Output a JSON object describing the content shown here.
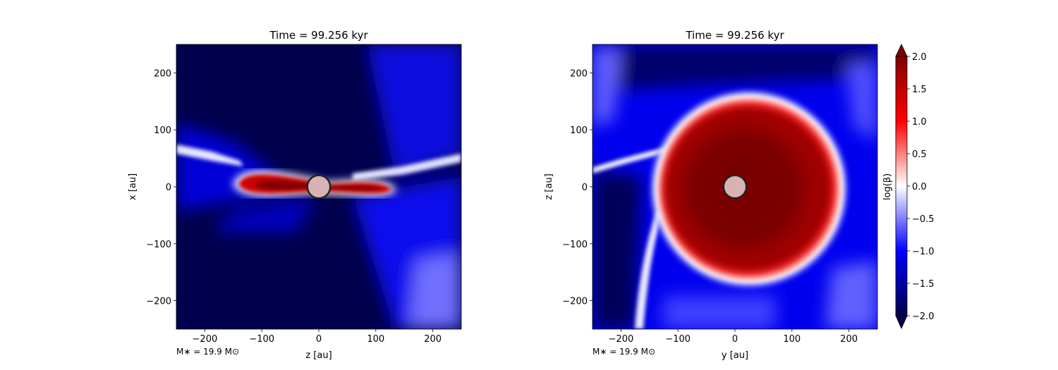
{
  "chart_data": [
    {
      "type": "heatmap",
      "title": "Time = 99.256 kyr",
      "xlabel": "z [au]",
      "ylabel": "x [au]",
      "xlim": [
        -250,
        250
      ],
      "ylim": [
        -250,
        250
      ],
      "xticks": [
        -200,
        -100,
        0,
        100,
        200
      ],
      "yticks": [
        -200,
        -100,
        0,
        100,
        200
      ],
      "annotation": "M∗ = 19.9 M⊙",
      "grid": false,
      "sink_radius_au": 20
    },
    {
      "type": "heatmap",
      "title": "Time = 99.256 kyr",
      "xlabel": "y [au]",
      "ylabel": "z [au]",
      "xlim": [
        -250,
        250
      ],
      "ylim": [
        -250,
        250
      ],
      "xticks": [
        -200,
        -100,
        0,
        100,
        200
      ],
      "yticks": [
        -200,
        -100,
        0,
        100,
        200
      ],
      "annotation": "M∗ = 19.9 M⊙",
      "grid": false,
      "sink_radius_au": 20
    }
  ],
  "colorbar": {
    "label": "log(β)",
    "range": [
      -2.0,
      2.0
    ],
    "ticks": [
      "−2.0",
      "−1.5",
      "−1.0",
      "−0.5",
      "0.0",
      "0.5",
      "1.0",
      "1.5",
      "2.0"
    ],
    "colormap": "seismic",
    "extend": "both",
    "colors": [
      "#00004c",
      "#0000ff",
      "#ffffff",
      "#ff0000",
      "#800000"
    ]
  }
}
